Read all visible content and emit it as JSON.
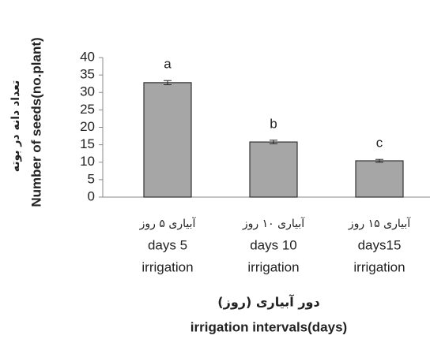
{
  "chart_data": {
    "type": "bar",
    "categories": [
      [
        "آبیاری ۵ روز",
        "days 5",
        "irrigation"
      ],
      [
        "آبیاری ۱۰ روز",
        "days 10",
        "irrigation"
      ],
      [
        "آبیاری ۱۵ روز",
        "days15",
        "irrigation"
      ]
    ],
    "values": [
      32.8,
      15.8,
      10.4
    ],
    "errors": [
      0.6,
      0.5,
      0.4
    ],
    "annotations": [
      "a",
      "b",
      "c"
    ],
    "color": "#a6a6a6",
    "ylim": [
      0,
      40
    ],
    "yticks": [
      0,
      5,
      10,
      15,
      20,
      25,
      30,
      35,
      40
    ],
    "grid": false,
    "y_label": [
      "تعداد دانه در بوته",
      "Number of seeds(no.plant)"
    ],
    "x_label": [
      "دور آبیاری (روز)",
      "irrigation intervals(days)"
    ]
  }
}
